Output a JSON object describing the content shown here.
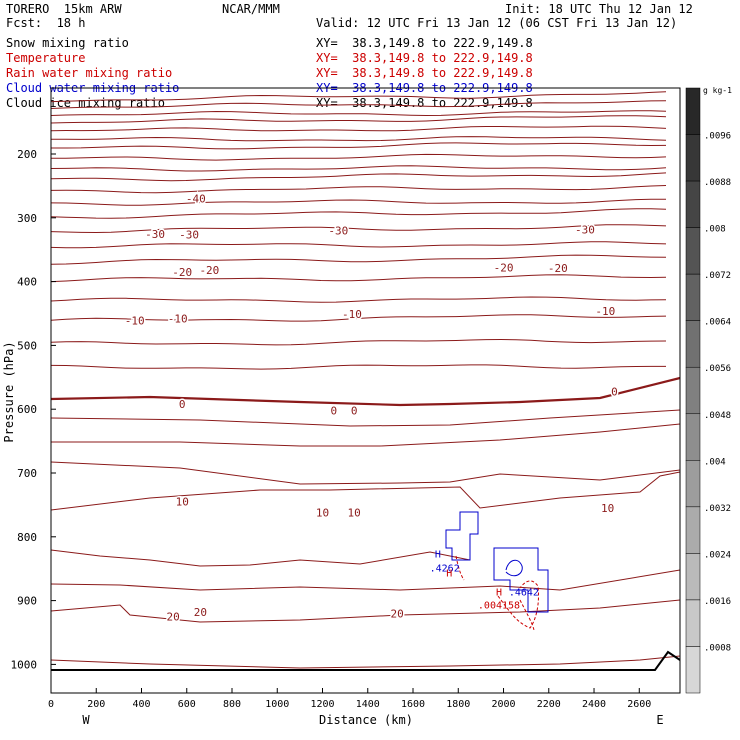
{
  "header": {
    "model": "TORERO  15km ARW",
    "forecast": "Fcst:  18 h",
    "org": "NCAR/MMM",
    "init": "Init: 18 UTC Thu 12 Jan 12",
    "valid": "Valid: 12 UTC Fri 13 Jan 12 (06 CST Fri 13 Jan 12)"
  },
  "fields": [
    {
      "name": "Snow mixing ratio",
      "xy": "XY=  38.3,149.8 to 222.9,149.8",
      "color": "#000000"
    },
    {
      "name": "Temperature",
      "xy": "XY=  38.3,149.8 to 222.9,149.8",
      "color": "#cc0000"
    },
    {
      "name": "Rain water mixing ratio",
      "xy": "XY=  38.3,149.8 to 222.9,149.8",
      "color": "#cc0000"
    },
    {
      "name": "Cloud water mixing ratio",
      "xy": "XY=  38.3,149.8 to 222.9,149.8",
      "color": "#0000cc"
    },
    {
      "name": "Cloud ice mixing ratio",
      "xy": "XY=  38.3,149.8 to 222.9,149.8",
      "color": "#000000"
    }
  ],
  "chart_data": {
    "type": "line",
    "title": "",
    "xlabel": "Distance (km)",
    "ylabel": "Pressure (hPa)",
    "xlim": [
      0,
      2780
    ],
    "ylim": [
      1050,
      100
    ],
    "y_scale": "pressure",
    "x_ticks": [
      0,
      200,
      400,
      600,
      800,
      1000,
      1200,
      1400,
      1600,
      1800,
      2000,
      2200,
      2400,
      2600
    ],
    "y_ticks": [
      200,
      300,
      400,
      500,
      600,
      700,
      800,
      900,
      1000
    ],
    "x_end_labels": {
      "left": "W",
      "right": "E"
    },
    "temperature_labels": [
      {
        "text": "-40",
        "x": 640,
        "p": 270
      },
      {
        "text": "-30",
        "x": 460,
        "p": 325
      },
      {
        "text": "-30",
        "x": 610,
        "p": 326
      },
      {
        "text": "-30",
        "x": 1270,
        "p": 320
      },
      {
        "text": "-30",
        "x": 2360,
        "p": 318
      },
      {
        "text": "-20",
        "x": 580,
        "p": 385
      },
      {
        "text": "-20",
        "x": 700,
        "p": 382
      },
      {
        "text": "-20",
        "x": 2000,
        "p": 378
      },
      {
        "text": "-20",
        "x": 2240,
        "p": 379
      },
      {
        "text": "-10",
        "x": 370,
        "p": 461
      },
      {
        "text": "-10",
        "x": 560,
        "p": 458
      },
      {
        "text": "-10",
        "x": 1330,
        "p": 451
      },
      {
        "text": "-10",
        "x": 2450,
        "p": 446
      },
      {
        "text": "0",
        "x": 580,
        "p": 592
      },
      {
        "text": "0",
        "x": 1250,
        "p": 602
      },
      {
        "text": "0",
        "x": 1340,
        "p": 602
      },
      {
        "text": "0",
        "x": 2490,
        "p": 572
      },
      {
        "text": "10",
        "x": 580,
        "p": 745
      },
      {
        "text": "10",
        "x": 1200,
        "p": 762
      },
      {
        "text": "10",
        "x": 1340,
        "p": 762
      },
      {
        "text": "10",
        "x": 2460,
        "p": 755
      },
      {
        "text": "20",
        "x": 540,
        "p": 925
      },
      {
        "text": "20",
        "x": 660,
        "p": 918
      },
      {
        "text": "20",
        "x": 1530,
        "p": 920
      }
    ],
    "cloud_water_labels": [
      {
        "text": "H",
        "x": 1710,
        "p": 826
      },
      {
        "text": ".4262",
        "x": 1740,
        "p": 848
      },
      {
        "text": ".4642",
        "x": 2090,
        "p": 886
      }
    ],
    "rain_water_labels": [
      {
        "text": "H",
        "x": 1760,
        "p": 856
      },
      {
        "text": "H",
        "x": 1980,
        "p": 886
      },
      {
        "text": ".004158",
        "x": 1980,
        "p": 906
      }
    ],
    "colorbar": {
      "units": "g kg-1",
      "levels": [
        ".0096",
        ".0088",
        ".008",
        ".0072",
        ".0064",
        ".0056",
        ".0048",
        ".004",
        ".0032",
        ".0024",
        ".0016",
        ".0008"
      ]
    },
    "grid": false
  }
}
